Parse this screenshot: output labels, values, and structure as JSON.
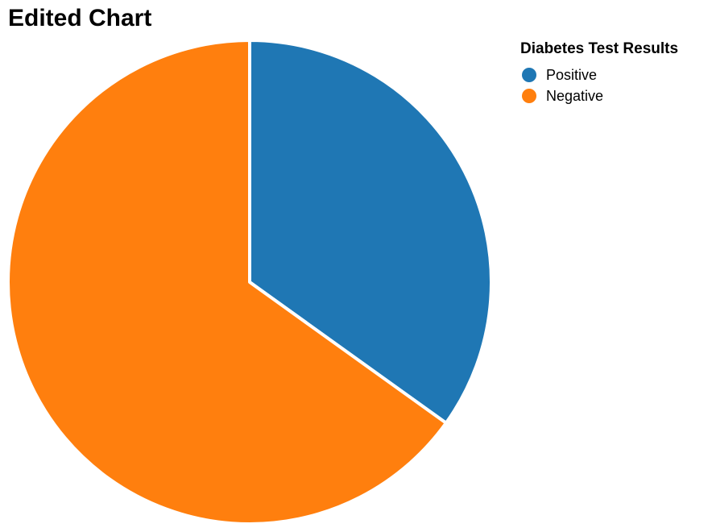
{
  "chart_data": {
    "type": "pie",
    "title": "Edited Chart",
    "legend_title": "Diabetes Test Results",
    "legend_position": "top-right",
    "slices": [
      {
        "label": "Positive",
        "value": 34.9,
        "color": "#1f77b4"
      },
      {
        "label": "Negative",
        "value": 65.1,
        "color": "#ff7f0e"
      }
    ]
  }
}
